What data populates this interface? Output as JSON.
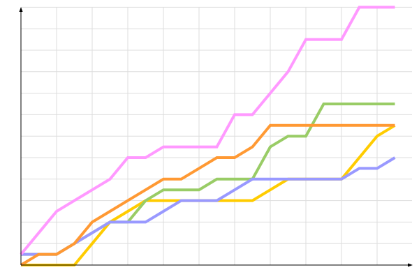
{
  "chart_data": {
    "type": "line",
    "title": "",
    "xlabel": "",
    "ylabel": "",
    "xlim": [
      0,
      22
    ],
    "ylim": [
      0,
      24
    ],
    "grid": true,
    "grid_step": {
      "x": 2,
      "y": 2
    },
    "x": [
      0,
      1,
      2,
      3,
      4,
      5,
      6,
      7,
      8,
      9,
      10,
      11,
      12,
      13,
      14,
      15,
      16,
      17,
      18,
      19,
      20,
      21
    ],
    "series": [
      {
        "color": "#ffcc00",
        "values": [
          0,
          0,
          0,
          0,
          2,
          4,
          5,
          6,
          6,
          6,
          6,
          6,
          6,
          6,
          7,
          8,
          8,
          8,
          8,
          10,
          12,
          13
        ]
      },
      {
        "color": "#99cc66",
        "values": [
          1,
          1,
          1,
          2,
          3,
          4,
          4,
          6,
          7,
          7,
          7,
          8,
          8,
          8,
          11,
          12,
          12,
          15,
          15,
          15,
          15,
          15
        ]
      },
      {
        "color": "#9999ff",
        "values": [
          1,
          1,
          1,
          2,
          3,
          4,
          4,
          4,
          5,
          6,
          6,
          6,
          7,
          8,
          8,
          8,
          8,
          8,
          8,
          9,
          9,
          10
        ]
      },
      {
        "color": "#ff9933",
        "values": [
          0,
          1,
          1,
          2,
          4,
          5,
          6,
          7,
          8,
          8,
          9,
          10,
          10,
          11,
          13,
          13,
          13,
          13,
          13,
          13,
          13,
          13
        ]
      },
      {
        "color": "#ff99ff",
        "values": [
          1,
          3,
          5,
          6,
          7,
          8,
          10,
          10,
          11,
          11,
          11,
          11,
          14,
          14,
          16,
          18,
          21,
          21,
          21,
          24,
          24,
          24
        ]
      }
    ]
  },
  "colors": {
    "grid": "#dddddd",
    "axis": "#000000"
  }
}
